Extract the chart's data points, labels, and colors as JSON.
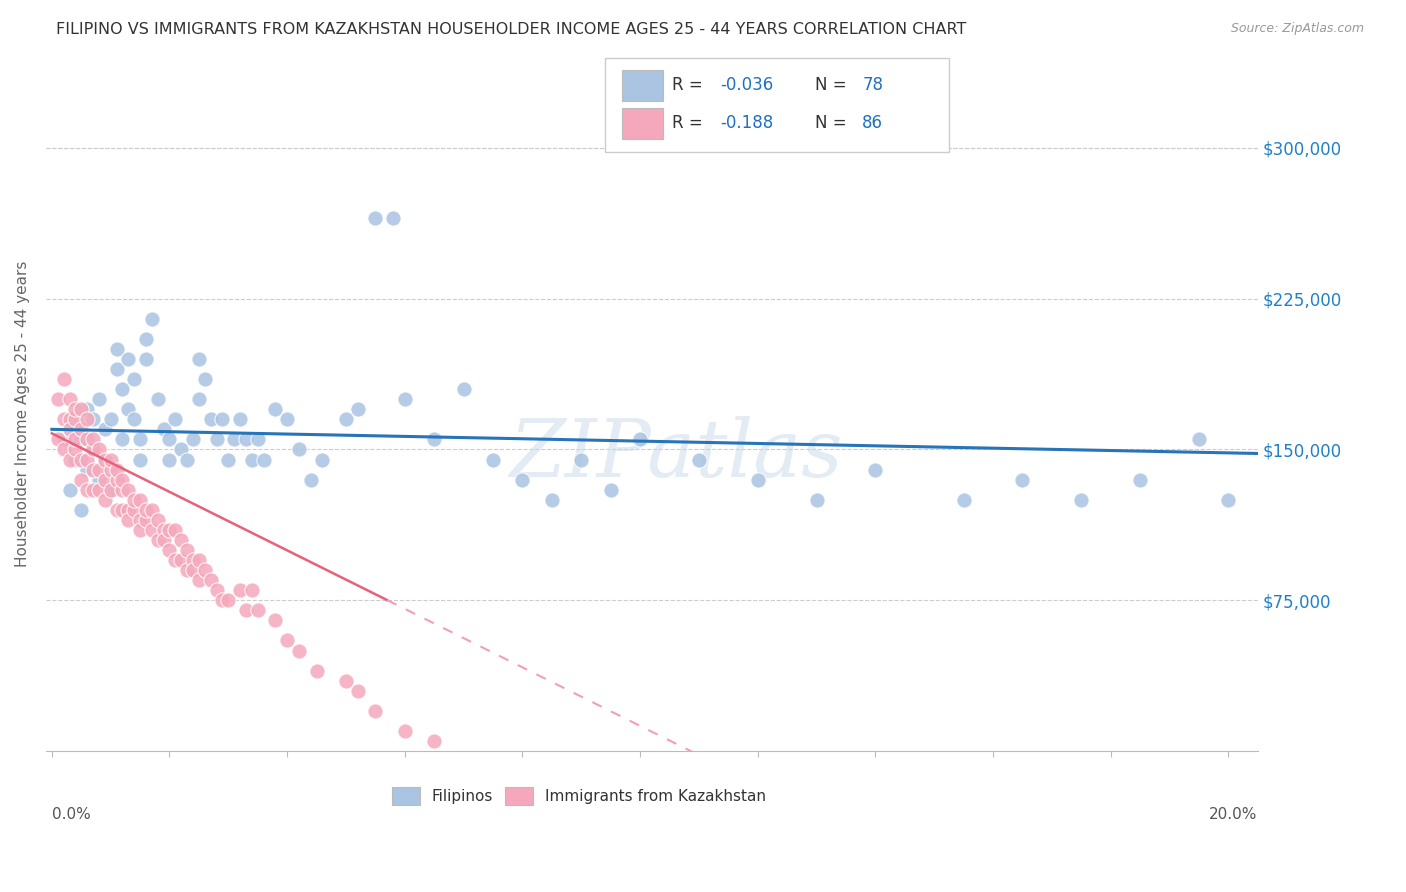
{
  "title": "FILIPINO VS IMMIGRANTS FROM KAZAKHSTAN HOUSEHOLDER INCOME AGES 25 - 44 YEARS CORRELATION CHART",
  "source": "Source: ZipAtlas.com",
  "ylabel": "Householder Income Ages 25 - 44 years",
  "watermark": "ZIPatlas",
  "r_filipino": -0.036,
  "n_filipino": 78,
  "r_kazakhstan": -0.188,
  "n_kazakhstan": 86,
  "xlim": [
    -0.001,
    0.205
  ],
  "ylim": [
    0,
    335000
  ],
  "yticks": [
    75000,
    150000,
    225000,
    300000
  ],
  "ytick_labels": [
    "$75,000",
    "$150,000",
    "$225,000",
    "$300,000"
  ],
  "filipino_color": "#aac4e2",
  "kazakhstan_color": "#f5a8bc",
  "filipino_line_color": "#2874b8",
  "kazakhstan_line_solid_color": "#e8607a",
  "kazakhstan_line_dash_color": "#f0a0b5",
  "bg_color": "#ffffff",
  "grid_color": "#cccccc",
  "legend_text_color": "#2070c0",
  "legend_r_color_fil": "#2070c0",
  "legend_r_color_kaz": "#2070c0",
  "xtick_label_left": "0.0%",
  "xtick_label_right": "20.0%"
}
